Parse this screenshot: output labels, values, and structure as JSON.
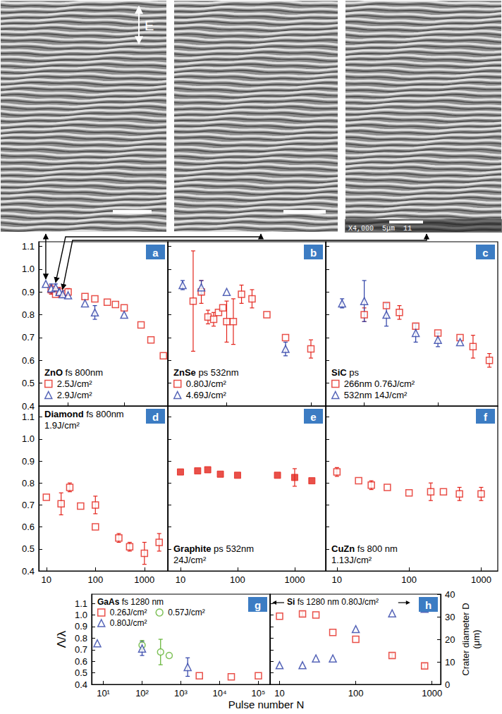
{
  "images": {
    "field_label": "E",
    "sem_caption": "X4,000  5μm  11"
  },
  "xlabel": "Pulse number N",
  "ylabel": "Λ/λ",
  "chart_data": [
    {
      "type": "scatter",
      "label": "a",
      "title": "ZnO",
      "subtitle": "fs 800nm",
      "log": "x",
      "xlim": [
        3,
        600
      ],
      "xticks": [
        10,
        100
      ],
      "ylim": [
        0.4,
        1.12
      ],
      "yticks": [
        0.4,
        0.5,
        0.6,
        0.7,
        0.8,
        0.9,
        {
          "value": 1,
          "label": "1.0"
        },
        1.1
      ],
      "tick_labels": "y",
      "legend": "lower left",
      "series": [
        {
          "name": "2.5J/cm²",
          "color": "#e3241c",
          "marker": "square_open",
          "x": [
            5,
            6,
            7,
            10,
            20,
            30,
            50,
            70,
            100,
            200,
            300,
            500
          ],
          "values": [
            0.91,
            0.89,
            0.9,
            0.9,
            0.88,
            0.87,
            0.855,
            0.845,
            0.83,
            0.755,
            0.69,
            0.62
          ],
          "errors": [
            0.02,
            null,
            0.02,
            0.015,
            null,
            null,
            null,
            null,
            null,
            null,
            null,
            null
          ]
        },
        {
          "name": "2.9J/cm²",
          "color": "#2c3fa6",
          "marker": "triangle_open",
          "x": [
            4,
            5,
            6,
            7,
            8,
            10,
            20,
            30,
            100
          ],
          "values": [
            0.935,
            0.915,
            0.92,
            0.9,
            0.89,
            0.885,
            0.85,
            0.81,
            0.8
          ],
          "errors": [
            null,
            0.02,
            0.015,
            null,
            0.015,
            null,
            null,
            0.03,
            null
          ]
        }
      ]
    },
    {
      "type": "scatter",
      "label": "b",
      "title": "ZnSe",
      "subtitle": "ps 532nm",
      "log": "x",
      "xlim": [
        2,
        150
      ],
      "xticks": [
        10,
        100
      ],
      "ylim": [
        0.4,
        1.12
      ],
      "yticks": [
        0.4,
        0.5,
        0.6,
        0.7,
        0.8,
        0.9,
        {
          "value": 1,
          "label": "1.0"
        },
        1.1
      ],
      "tick_labels": false,
      "legend": "lower left",
      "series": [
        {
          "name": "0.80J/cm²",
          "color": "#e3241c",
          "marker": "square_open",
          "x": [
            4,
            5,
            6,
            7,
            8,
            9,
            10,
            12,
            15,
            20,
            30,
            50,
            100
          ],
          "values": [
            0.86,
            0.9,
            0.79,
            0.78,
            0.81,
            0.83,
            0.77,
            0.77,
            0.89,
            0.87,
            0.8,
            0.7,
            0.65
          ],
          "errors": [
            0.22,
            0.05,
            0.03,
            0.03,
            null,
            null,
            0.09,
            0.1,
            0.04,
            0.04,
            null,
            null,
            0.04
          ]
        },
        {
          "name": "4.69J/cm²",
          "color": "#2c3fa6",
          "marker": "triangle_open",
          "x": [
            3,
            5,
            10,
            50
          ],
          "values": [
            0.93,
            0.92,
            0.9,
            0.65
          ],
          "errors": [
            0.02,
            0.03,
            null,
            0.03
          ]
        }
      ]
    },
    {
      "type": "scatter",
      "label": "c",
      "title": "SiC",
      "subtitle": "ps",
      "log": "x",
      "xlim": [
        3,
        650
      ],
      "xticks": [
        10,
        100
      ],
      "ylim": [
        0.4,
        1.12
      ],
      "yticks": [
        0.4,
        0.5,
        0.6,
        0.7,
        0.8,
        0.9,
        {
          "value": 1,
          "label": "1.0"
        },
        1.1
      ],
      "tick_labels": false,
      "legend": "lower left",
      "series": [
        {
          "name": "266nm 0.76J/cm²",
          "color": "#e3241c",
          "marker": "square_open",
          "x": [
            10,
            20,
            30,
            50,
            100,
            200,
            300,
            500
          ],
          "values": [
            0.8,
            0.84,
            0.81,
            0.75,
            0.72,
            0.7,
            0.66,
            0.6
          ],
          "errors": [
            0.03,
            null,
            0.03,
            null,
            null,
            null,
            0.05,
            0.03
          ]
        },
        {
          "name": "532nm 14J/cm²",
          "color": "#2c3fa6",
          "marker": "triangle_open",
          "x": [
            5,
            10,
            20,
            50,
            100,
            200
          ],
          "values": [
            0.85,
            0.86,
            0.8,
            0.72,
            0.69,
            0.68
          ],
          "errors": [
            0.02,
            0.09,
            0.05,
            0.04,
            0.03,
            null
          ]
        }
      ]
    },
    {
      "type": "scatter",
      "label": "d",
      "title": "Diamond",
      "subtitle": "fs 800nm",
      "annotation": "1.9J/cm²",
      "log": "x",
      "xlim": [
        7,
        3000
      ],
      "xticks": [
        10,
        100,
        1000
      ],
      "ylim": [
        0.4,
        1.15
      ],
      "yticks": [
        0.4,
        0.5,
        0.6,
        0.7,
        0.8,
        0.9,
        {
          "value": 1,
          "label": "1.0"
        },
        1.1
      ],
      "series": [
        {
          "color": "#e3241c",
          "marker": "square_open",
          "x": [
            10,
            20,
            30,
            50,
            100,
            100,
            300,
            500,
            1000,
            2000
          ],
          "values": [
            0.735,
            0.705,
            0.78,
            0.695,
            0.7,
            0.6,
            0.55,
            0.51,
            0.48,
            0.53
          ],
          "errors": [
            null,
            0.05,
            0.02,
            null,
            0.04,
            null,
            0.02,
            0.02,
            0.05,
            0.04
          ]
        }
      ]
    },
    {
      "type": "scatter",
      "label": "e",
      "title": "Graphite",
      "subtitle": "ps 532nm",
      "annotation": "24J/cm²",
      "log": "x",
      "xlim": [
        6,
        3500
      ],
      "xticks": [
        10,
        100,
        1000
      ],
      "ylim": [
        0.4,
        1.15
      ],
      "yticks": [
        0.4,
        0.5,
        0.6,
        0.7,
        0.8,
        0.9,
        {
          "value": 1,
          "label": "1.0"
        },
        1.1
      ],
      "tick_labels": "x",
      "series": [
        {
          "color": "#e3241c",
          "marker": "square_filled",
          "x": [
            10,
            20,
            30,
            50,
            100,
            500,
            1000,
            2000
          ],
          "values": [
            0.85,
            0.855,
            0.86,
            0.84,
            0.835,
            0.835,
            0.825,
            0.81
          ],
          "errors": [
            null,
            null,
            null,
            null,
            null,
            null,
            0.04,
            null
          ]
        }
      ]
    },
    {
      "type": "scatter",
      "label": "f",
      "title": "CuZn",
      "subtitle": "fs 800 nm",
      "annotation": "1.13J/cm²",
      "log": "x",
      "xlim": [
        7,
        1700
      ],
      "xticks": [
        10,
        100,
        1000
      ],
      "ylim": [
        0.4,
        1.15
      ],
      "yticks": [
        0.4,
        0.5,
        0.6,
        0.7,
        0.8,
        0.9,
        {
          "value": 1,
          "label": "1.0"
        },
        1.1
      ],
      "tick_labels": "x",
      "series": [
        {
          "color": "#e3241c",
          "marker": "square_open",
          "x": [
            10,
            20,
            30,
            50,
            100,
            200,
            300,
            500,
            1000
          ],
          "values": [
            0.85,
            0.81,
            0.79,
            0.78,
            0.755,
            0.76,
            0.76,
            0.75,
            0.75
          ],
          "errors": [
            0.02,
            null,
            0.02,
            null,
            null,
            0.04,
            null,
            0.03,
            0.03
          ]
        }
      ]
    },
    {
      "type": "scatter",
      "label": "g",
      "title": "GaAs",
      "subtitle": "fs 1280 nm",
      "log": "x",
      "xlim": [
        5,
        200000
      ],
      "xticks": [
        {
          "value": 10,
          "label": "10¹"
        },
        {
          "value": 100,
          "label": "10²"
        },
        {
          "value": 1000,
          "label": "10³"
        },
        {
          "value": 10000,
          "label": "10⁴"
        },
        {
          "value": 100000,
          "label": "10⁵"
        }
      ],
      "ylim": [
        0.4,
        1.18
      ],
      "yticks": [
        0.4,
        0.5,
        0.6,
        0.7,
        0.8,
        0.9,
        {
          "value": 1,
          "label": "1.0"
        },
        1.1
      ],
      "legend": "upper left",
      "series": [
        {
          "name": "0.26J/cm²",
          "color": "#e3241c",
          "marker": "square_open",
          "x": [
            3000,
            20000,
            100000
          ],
          "values": [
            0.475,
            0.465,
            0.475
          ],
          "errors": [
            null,
            null,
            null
          ]
        },
        {
          "name": "0.57J/cm²",
          "color": "#5fb12f",
          "marker": "circle_open",
          "x": [
            100,
            300,
            500
          ],
          "values": [
            0.74,
            0.68,
            0.65
          ],
          "errors": [
            0.04,
            0.11,
            null
          ]
        },
        {
          "name": "0.80J/cm²",
          "color": "#2c3fa6",
          "marker": "triangle_open",
          "x": [
            7,
            100,
            1500
          ],
          "values": [
            0.755,
            0.71,
            0.55
          ],
          "errors": [
            null,
            0.06,
            0.08
          ]
        }
      ]
    },
    {
      "type": "scatter",
      "label": "h",
      "title": "Si",
      "subtitle": "fs 1280 nm 0.80J/cm²",
      "log": "x",
      "xlim": [
        7.5,
        1300
      ],
      "xticks": [
        10,
        100,
        1000
      ],
      "ylim": [
        0.4,
        1.18
      ],
      "yticks": [
        0.4,
        0.5,
        0.6,
        0.7,
        0.8,
        0.9,
        {
          "value": 1,
          "label": "1.0"
        },
        1.1
      ],
      "y2label": "Crater diameter D (μm)",
      "y2lim": [
        0,
        40
      ],
      "y2ticks": [
        0,
        10,
        20,
        30,
        40
      ],
      "tick_labels": "x",
      "series": [
        {
          "color": "#e3241c",
          "marker": "square_open",
          "x": [
            10,
            20,
            30,
            50,
            100,
            300,
            800
          ],
          "values": [
            0.99,
            1.01,
            1.0,
            0.85,
            0.79,
            0.65,
            0.56
          ],
          "errors": [
            null,
            0.02,
            null,
            null,
            null,
            0.02,
            0.02
          ]
        },
        {
          "color": "#2c3fa6",
          "marker": "triangle_open",
          "axis": "y2",
          "x": [
            10,
            20,
            30,
            50,
            100,
            300,
            800
          ],
          "values": [
            8.5,
            8.5,
            11.5,
            11.5,
            24.5,
            31.5,
            33.5
          ]
        }
      ]
    }
  ]
}
